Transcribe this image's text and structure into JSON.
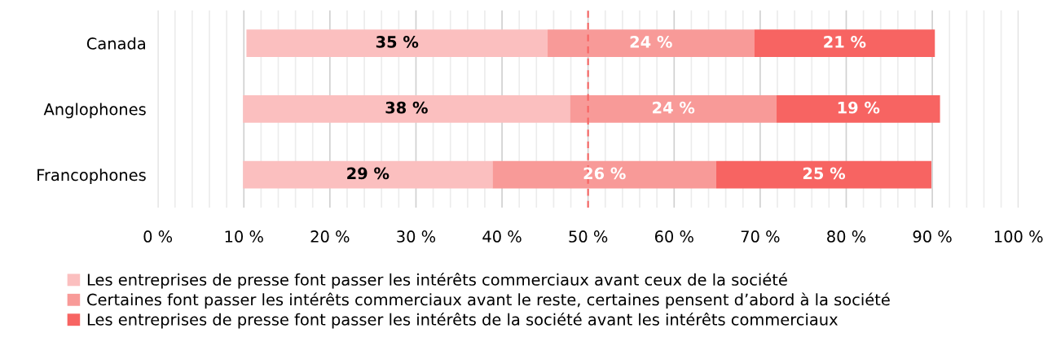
{
  "chart_data": {
    "type": "bar",
    "orientation": "horizontal",
    "categories": [
      "Canada",
      "Anglophones",
      "Francophones"
    ],
    "series": [
      {
        "name": "Les entreprises de presse font passer les intérêts commerciaux avant ceux de la société",
        "color": "#fbbfbf",
        "base": [
          10.3,
          9.9,
          9.9
        ],
        "values": [
          35,
          38,
          29
        ],
        "value_labels": [
          "35 %",
          "38 %",
          "29 %"
        ]
      },
      {
        "name": "Certaines font passer les intérêts commerciaux avant le reste, certaines pensent d’abord à la société",
        "color": "#f89a98",
        "base": [
          45.3,
          47.9,
          38.9
        ],
        "values": [
          24,
          24,
          26
        ],
        "value_labels": [
          "24 %",
          "24 %",
          "26 %"
        ]
      },
      {
        "name": "Les entreprises de presse font passer les intérêts de la société avant les intérêts commerciaux",
        "color": "#f76462",
        "base": [
          69.3,
          71.9,
          64.9
        ],
        "values": [
          21,
          19,
          25
        ],
        "value_labels": [
          "21 %",
          "19 %",
          "25 %"
        ]
      }
    ],
    "xlim": [
      0,
      100
    ],
    "xticks": [
      {
        "value": 0,
        "label": "0 %"
      },
      {
        "value": 2,
        "label": null
      },
      {
        "value": 4,
        "label": null
      },
      {
        "value": 6,
        "label": null
      },
      {
        "value": 8,
        "label": null
      },
      {
        "value": 10,
        "label": "10 %"
      },
      {
        "value": 12,
        "label": null
      },
      {
        "value": 14,
        "label": null
      },
      {
        "value": 16,
        "label": null
      },
      {
        "value": 18,
        "label": null
      },
      {
        "value": 20,
        "label": "20 %"
      },
      {
        "value": 22,
        "label": null
      },
      {
        "value": 24,
        "label": null
      },
      {
        "value": 26,
        "label": null
      },
      {
        "value": 28,
        "label": null
      },
      {
        "value": 30,
        "label": "30 %"
      },
      {
        "value": 32,
        "label": null
      },
      {
        "value": 34,
        "label": null
      },
      {
        "value": 36,
        "label": null
      },
      {
        "value": 38,
        "label": null
      },
      {
        "value": 40,
        "label": "40 %"
      },
      {
        "value": 42,
        "label": null
      },
      {
        "value": 44,
        "label": null
      },
      {
        "value": 46,
        "label": null
      },
      {
        "value": 48,
        "label": null
      },
      {
        "value": 50,
        "label": "50 %"
      },
      {
        "value": 52,
        "label": null
      },
      {
        "value": 54,
        "label": null
      },
      {
        "value": 56,
        "label": null
      },
      {
        "value": 58,
        "label": null
      },
      {
        "value": 60,
        "label": "60 %"
      },
      {
        "value": 62,
        "label": null
      },
      {
        "value": 64,
        "label": null
      },
      {
        "value": 66,
        "label": null
      },
      {
        "value": 68,
        "label": null
      },
      {
        "value": 70,
        "label": "70 %"
      },
      {
        "value": 72,
        "label": null
      },
      {
        "value": 74,
        "label": null
      },
      {
        "value": 76,
        "label": null
      },
      {
        "value": 78,
        "label": null
      },
      {
        "value": 80,
        "label": "80 %"
      },
      {
        "value": 82,
        "label": null
      },
      {
        "value": 84,
        "label": null
      },
      {
        "value": 86,
        "label": null
      },
      {
        "value": 88,
        "label": null
      },
      {
        "value": 90,
        "label": "90 %"
      },
      {
        "value": 92,
        "label": null
      },
      {
        "value": 94,
        "label": null
      },
      {
        "value": 96,
        "label": null
      },
      {
        "value": 98,
        "label": null
      },
      {
        "value": 100,
        "label": "100 %"
      }
    ],
    "grid": "x",
    "ref_lines": [
      {
        "axis": "x",
        "value": 50,
        "color": "#f76462",
        "line_style": "dashed"
      }
    ],
    "legend": "bottom"
  }
}
